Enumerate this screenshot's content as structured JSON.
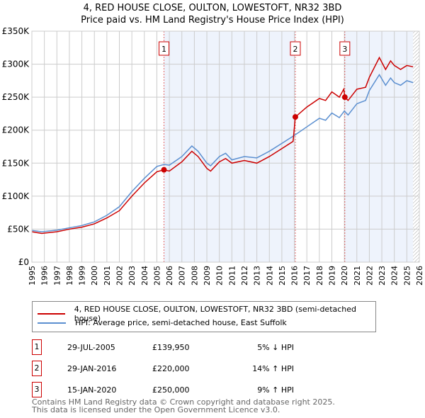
{
  "title": "4, RED HOUSE CLOSE, OULTON, LOWESTOFT, NR32 3BD",
  "subtitle": "Price paid vs. HM Land Registry's House Price Index (HPI)",
  "chart_data": {
    "type": "line",
    "xlim": [
      1995,
      2026
    ],
    "ylim": [
      0,
      350000
    ],
    "yticks": [
      {
        "v": 0,
        "l": "£0"
      },
      {
        "v": 50000,
        "l": "£50K"
      },
      {
        "v": 100000,
        "l": "£100K"
      },
      {
        "v": 150000,
        "l": "£150K"
      },
      {
        "v": 200000,
        "l": "£200K"
      },
      {
        "v": 250000,
        "l": "£250K"
      },
      {
        "v": 300000,
        "l": "£300K"
      },
      {
        "v": 350000,
        "l": "£350K"
      }
    ],
    "xticks": [
      "1995",
      "1996",
      "1997",
      "1998",
      "1999",
      "2000",
      "2001",
      "2002",
      "2003",
      "2004",
      "2005",
      "2006",
      "2007",
      "2008",
      "2009",
      "2010",
      "2011",
      "2012",
      "2013",
      "2014",
      "2015",
      "2016",
      "2017",
      "2018",
      "2019",
      "2020",
      "2021",
      "2022",
      "2023",
      "2024",
      "2025",
      "2026"
    ],
    "series": [
      {
        "name": "4, RED HOUSE CLOSE, OULTON, LOWESTOFT, NR32 3BD (semi-detached house)",
        "color": "#cc0000",
        "x": [
          1995,
          1995.8,
          1996,
          1997,
          1998,
          1999,
          2000,
          2001,
          2002,
          2003,
          2004,
          2005,
          2005.57,
          2006,
          2007,
          2007.8,
          2008.3,
          2009,
          2009.3,
          2010,
          2010.5,
          2011,
          2012,
          2013,
          2014,
          2015,
          2015.9,
          2016.08,
          2017,
          2018,
          2018.5,
          2019,
          2019.6,
          2019.95,
          2020.04,
          2020.3,
          2021,
          2021.7,
          2022,
          2022.8,
          2023.3,
          2023.7,
          2024,
          2024.5,
          2025,
          2025.5
        ],
        "y": [
          46000,
          43500,
          44000,
          46000,
          50000,
          53000,
          58000,
          67000,
          78000,
          100000,
          120000,
          137000,
          139950,
          138000,
          152000,
          168000,
          160000,
          142000,
          138000,
          152000,
          157000,
          150000,
          154000,
          150000,
          160000,
          172000,
          183000,
          220000,
          235000,
          248000,
          245000,
          258000,
          250000,
          262000,
          250000,
          245000,
          262000,
          265000,
          280000,
          310000,
          292000,
          305000,
          298000,
          292000,
          298000,
          296000
        ]
      },
      {
        "name": "HPI: Average price, semi-detached house, East Suffolk",
        "color": "#5b8fd0",
        "x": [
          1995,
          1995.8,
          1996,
          1997,
          1998,
          1999,
          2000,
          2001,
          2002,
          2003,
          2004,
          2005,
          2005.57,
          2006,
          2007,
          2007.8,
          2008.3,
          2009,
          2009.3,
          2010,
          2010.5,
          2011,
          2012,
          2013,
          2014,
          2015,
          2016,
          2017,
          2018,
          2018.5,
          2019,
          2019.6,
          2020,
          2020.3,
          2021,
          2021.7,
          2022,
          2022.8,
          2023.3,
          2023.7,
          2024,
          2024.5,
          2025,
          2025.5
        ],
        "y": [
          48000,
          46000,
          46500,
          48500,
          52000,
          55500,
          61000,
          71000,
          84000,
          107000,
          127000,
          145000,
          148000,
          147000,
          160000,
          176000,
          168000,
          150000,
          146000,
          160000,
          165000,
          155000,
          160000,
          158000,
          168000,
          180000,
          192000,
          205000,
          218000,
          215000,
          226000,
          219000,
          229000,
          223000,
          240000,
          245000,
          260000,
          284000,
          268000,
          279000,
          272000,
          268000,
          275000,
          272000
        ]
      }
    ],
    "sales": [
      {
        "n": "1",
        "x": 2005.57,
        "y": 139950,
        "date": "29-JUL-2005",
        "price": "£139,950",
        "hpi": "5% ↓ HPI"
      },
      {
        "n": "2",
        "x": 2016.08,
        "y": 220000,
        "date": "29-JAN-2016",
        "price": "£220,000",
        "hpi": "14% ↑ HPI"
      },
      {
        "n": "3",
        "x": 2020.04,
        "y": 250000,
        "date": "15-JAN-2020",
        "price": "£250,000",
        "hpi": "9% ↑ HPI"
      }
    ],
    "data_end": 2025.5
  },
  "footer": [
    "Contains HM Land Registry data © Crown copyright and database right 2025.",
    "This data is licensed under the Open Government Licence v3.0."
  ]
}
